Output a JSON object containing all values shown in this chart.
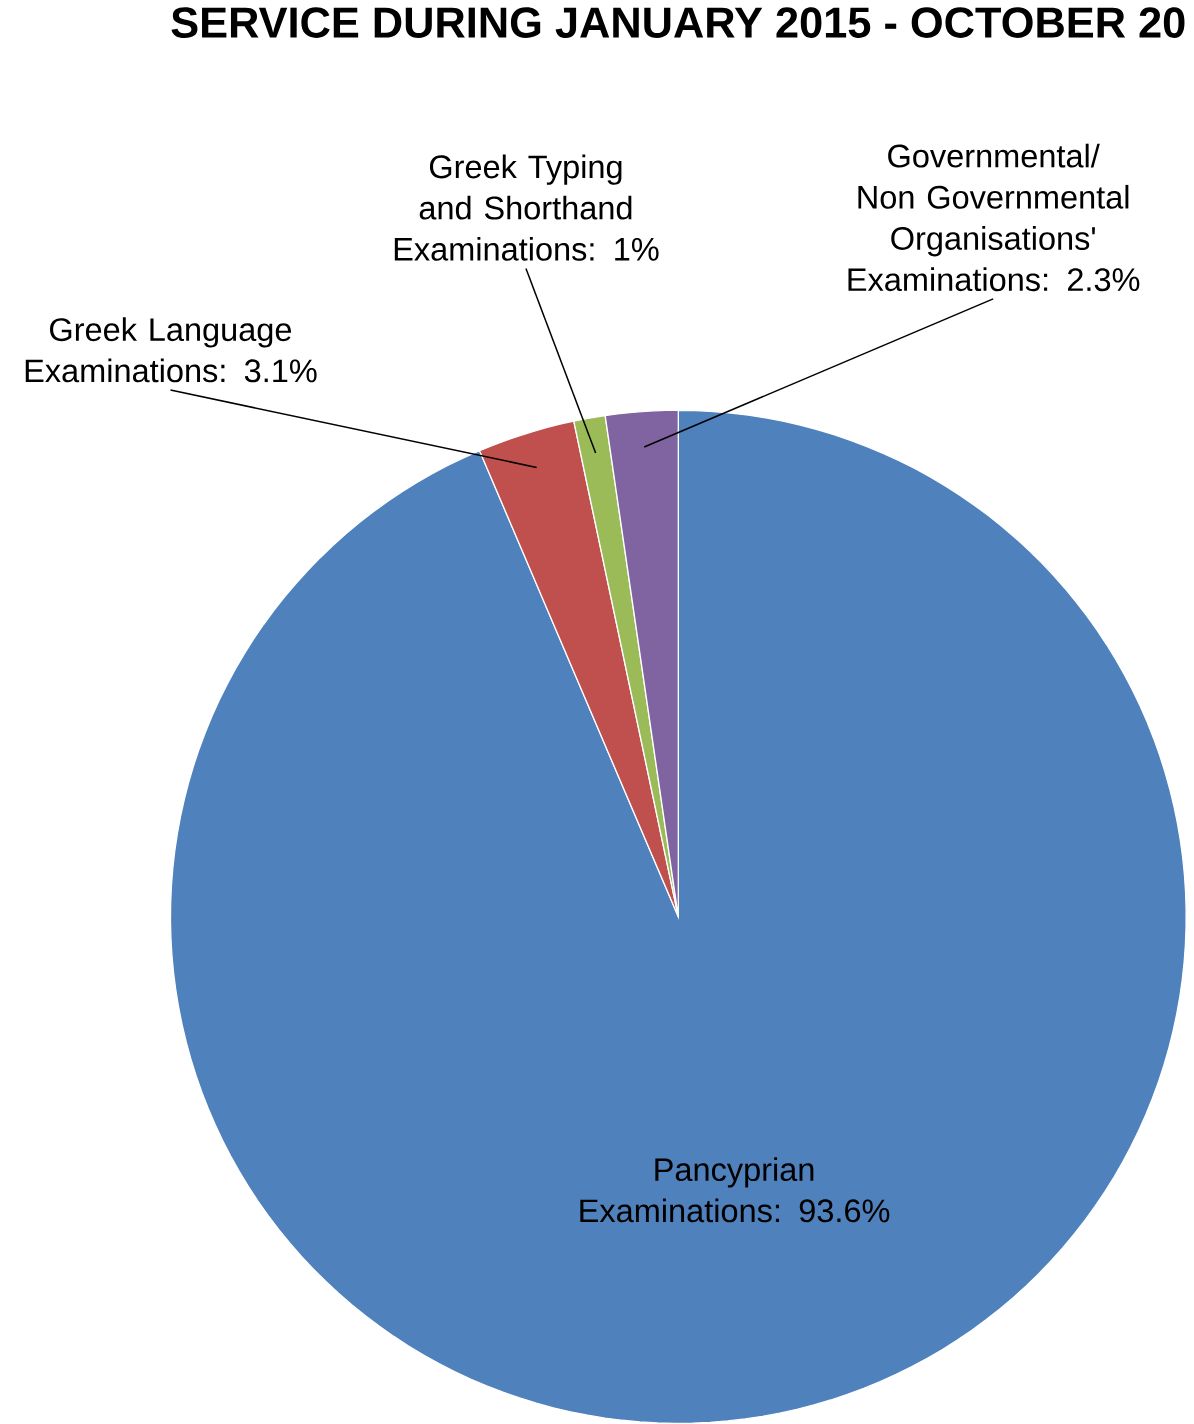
{
  "chart_data": {
    "type": "pie",
    "title": "SERVICE DURING JANUARY 2015 - OCTOBER 20",
    "categories": [
      "Pancyprian Examinations",
      "Greek Language Examinations",
      "Greek Typing and Shorthand Examinations",
      "Governmental/ Non Governmental Organisations' Examinations"
    ],
    "values": [
      93.6,
      3.1,
      1,
      2.3
    ],
    "value_labels": [
      ": 93.6%",
      ": 3.1%",
      ": 1%",
      ": 2.3%"
    ],
    "colors": [
      "#4f81bd",
      "#c0504d",
      "#9bbb59",
      "#8064a2"
    ]
  }
}
